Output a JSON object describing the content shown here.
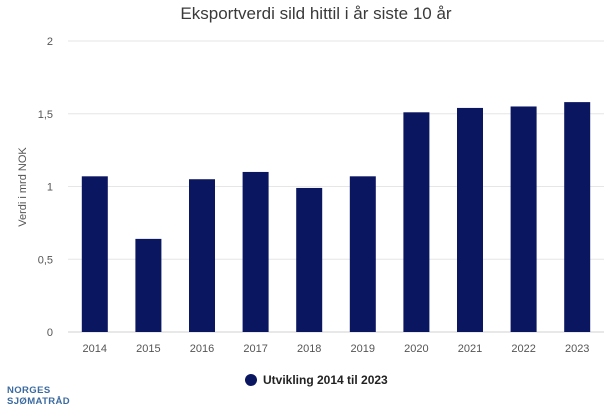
{
  "chart_data": {
    "type": "bar",
    "title": "Eksportverdi sild hittil i år siste 10 år",
    "ylabel": "Verdi i mrd NOK",
    "xlabel": "",
    "categories": [
      "2014",
      "2015",
      "2016",
      "2017",
      "2018",
      "2019",
      "2020",
      "2021",
      "2022",
      "2023"
    ],
    "series": [
      {
        "name": "Utvikling 2014 til 2023",
        "values": [
          1.07,
          0.64,
          1.05,
          1.1,
          0.99,
          1.07,
          1.51,
          1.54,
          1.55,
          1.58
        ],
        "color": "#0b1660"
      }
    ],
    "ylim": [
      0,
      2
    ],
    "yticks": [
      0,
      0.5,
      1,
      1.5,
      2
    ],
    "ytick_labels": [
      "0",
      "0,5",
      "1",
      "1,5",
      "2"
    ],
    "grid": true,
    "legend": "bottom-center"
  },
  "logo": {
    "line1": "NORGES",
    "line2": "SJØMATRÅD"
  }
}
